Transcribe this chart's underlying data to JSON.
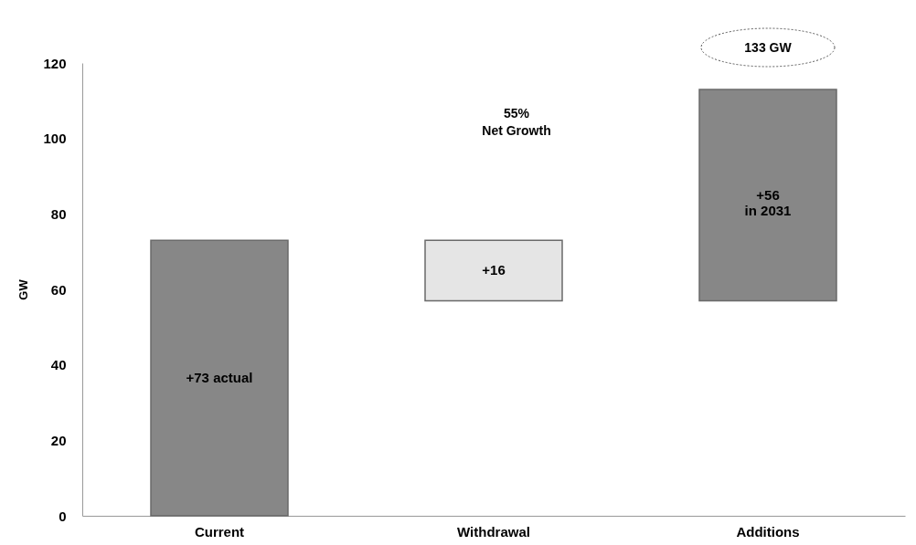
{
  "chart_data": {
    "type": "bar",
    "ylabel": "GW",
    "categories": [
      "Current",
      "Withdrawal",
      "Additions"
    ],
    "values": [
      73,
      16,
      56
    ],
    "base": [
      0,
      57,
      57
    ],
    "colors": [
      "#878787",
      "#e5e5e5",
      "#878787"
    ],
    "value_labels": [
      "+73 actual",
      "+16",
      "+56\nin 2031"
    ],
    "ylim": [
      0,
      120
    ],
    "yticks": [
      0,
      20,
      40,
      60,
      80,
      100,
      120
    ],
    "grid": false,
    "annotations": [
      "55%\nNet Growth",
      "133 GW"
    ]
  }
}
